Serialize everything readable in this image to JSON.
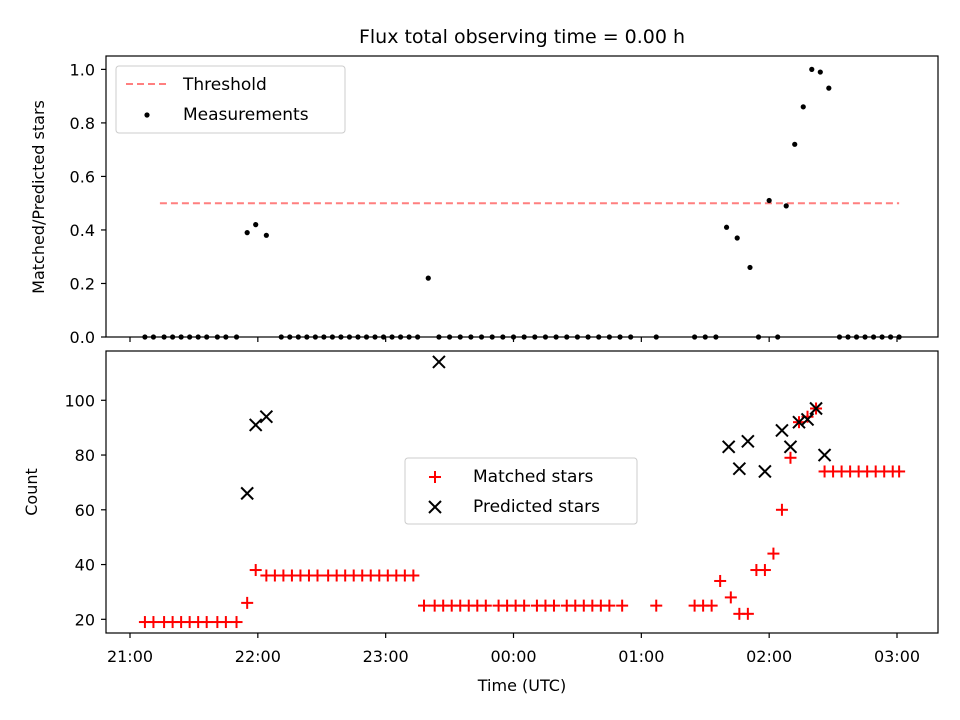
{
  "chart_data": [
    {
      "type": "scatter",
      "title": "Flux total observing time = 0.00 h",
      "ylabel": "Matched/Predicted stars",
      "xlabel": "",
      "ylim": [
        0,
        1.05
      ],
      "yticks": [
        "0.0",
        "0.2",
        "0.4",
        "0.6",
        "0.8",
        "1.0"
      ],
      "ytick_values": [
        0,
        0.2,
        0.4,
        0.6,
        0.8,
        1.0
      ],
      "grid": false,
      "legend_position": "upper-left",
      "threshold": {
        "name": "Threshold",
        "value": 0.5,
        "x_start": "21:07",
        "x_end": "03:01",
        "color": "#ff7f7f"
      },
      "series": [
        {
          "name": "Measurements",
          "color": "#000000",
          "x": [
            "21:07",
            "21:11",
            "21:16",
            "21:20",
            "21:24",
            "21:28",
            "21:32",
            "21:36",
            "21:41",
            "21:45",
            "21:50",
            "21:55",
            "21:59",
            "22:04",
            "22:11",
            "22:15",
            "22:19",
            "22:23",
            "22:27",
            "22:31",
            "22:35",
            "22:39",
            "22:43",
            "22:47",
            "22:51",
            "22:55",
            "22:59",
            "23:03",
            "23:07",
            "23:11",
            "23:15",
            "23:20",
            "23:25",
            "23:30",
            "23:35",
            "23:40",
            "23:45",
            "23:50",
            "23:55",
            "00:00",
            "00:05",
            "00:10",
            "00:15",
            "00:20",
            "00:25",
            "00:30",
            "00:35",
            "00:40",
            "00:45",
            "00:50",
            "00:55",
            "01:07",
            "01:25",
            "01:30",
            "01:35",
            "01:40",
            "01:45",
            "01:51",
            "01:55",
            "02:00",
            "02:04",
            "02:08",
            "02:12",
            "02:16",
            "02:20",
            "02:24",
            "02:28",
            "02:33",
            "02:37",
            "02:41",
            "02:45",
            "02:49",
            "02:53",
            "02:57",
            "03:01"
          ],
          "y": [
            0,
            0,
            0,
            0,
            0,
            0,
            0,
            0,
            0,
            0,
            0,
            0.39,
            0.42,
            0.38,
            0,
            0,
            0,
            0,
            0,
            0,
            0,
            0,
            0,
            0,
            0,
            0,
            0,
            0,
            0,
            0,
            0,
            0.22,
            0,
            0,
            0,
            0,
            0,
            0,
            0,
            0,
            0,
            0,
            0,
            0,
            0,
            0,
            0,
            0,
            0,
            0,
            0,
            0,
            0,
            0,
            0,
            0.41,
            0.37,
            0.26,
            0,
            0.51,
            0,
            0.49,
            0.72,
            0.86,
            1.0,
            0.99,
            0.93,
            0,
            0,
            0,
            0,
            0,
            0,
            0,
            0
          ]
        }
      ]
    },
    {
      "type": "scatter",
      "title": "",
      "ylabel": "Count",
      "xlabel": "Time (UTC)",
      "ylim": [
        15,
        118
      ],
      "yticks": [
        "20",
        "40",
        "60",
        "80",
        "100"
      ],
      "ytick_values": [
        20,
        40,
        60,
        80,
        100
      ],
      "xticks": [
        "21:00",
        "22:00",
        "23:00",
        "00:00",
        "01:00",
        "02:00",
        "03:00"
      ],
      "xtick_values": [
        "21:00",
        "22:00",
        "23:00",
        "00:00",
        "01:00",
        "02:00",
        "03:00"
      ],
      "grid": false,
      "legend_position": "center",
      "series": [
        {
          "name": "Matched stars",
          "color": "#ff0000",
          "marker": "plus",
          "x": [
            "21:07",
            "21:11",
            "21:16",
            "21:20",
            "21:24",
            "21:28",
            "21:32",
            "21:36",
            "21:41",
            "21:45",
            "21:50",
            "21:55",
            "21:59",
            "22:04",
            "22:08",
            "22:12",
            "22:16",
            "22:20",
            "22:24",
            "22:28",
            "22:33",
            "22:37",
            "22:41",
            "22:45",
            "22:49",
            "22:53",
            "22:57",
            "23:01",
            "23:05",
            "23:09",
            "23:13",
            "23:18",
            "23:23",
            "23:27",
            "23:31",
            "23:35",
            "23:39",
            "23:43",
            "23:47",
            "23:53",
            "23:57",
            "00:01",
            "00:05",
            "00:11",
            "00:15",
            "00:19",
            "00:25",
            "00:29",
            "00:33",
            "00:37",
            "00:41",
            "00:45",
            "00:51",
            "01:07",
            "01:25",
            "01:29",
            "01:33",
            "01:37",
            "01:42",
            "01:46",
            "01:50",
            "01:54",
            "01:58",
            "02:02",
            "02:06",
            "02:10",
            "02:14",
            "02:18",
            "02:22",
            "02:26",
            "02:30",
            "02:34",
            "02:38",
            "02:42",
            "02:46",
            "02:50",
            "02:54",
            "02:58",
            "03:01"
          ],
          "y": [
            19,
            19,
            19,
            19,
            19,
            19,
            19,
            19,
            19,
            19,
            19,
            26,
            38,
            36,
            36,
            36,
            36,
            36,
            36,
            36,
            36,
            36,
            36,
            36,
            36,
            36,
            36,
            36,
            36,
            36,
            36,
            25,
            25,
            25,
            25,
            25,
            25,
            25,
            25,
            25,
            25,
            25,
            25,
            25,
            25,
            25,
            25,
            25,
            25,
            25,
            25,
            25,
            25,
            25,
            25,
            25,
            25,
            34,
            28,
            22,
            22,
            38,
            38,
            44,
            60,
            79,
            92,
            94,
            97,
            74,
            74,
            74,
            74,
            74,
            74,
            74,
            74,
            74,
            74
          ]
        },
        {
          "name": "Predicted stars",
          "color": "#000000",
          "marker": "x",
          "x": [
            "21:55",
            "21:59",
            "22:04",
            "23:25",
            "01:41",
            "01:46",
            "01:50",
            "01:58",
            "02:06",
            "02:10",
            "02:14",
            "02:18",
            "02:22",
            "02:26"
          ],
          "y": [
            66,
            91,
            94,
            114,
            83,
            75,
            85,
            74,
            89,
            83,
            92,
            93,
            97,
            80
          ]
        }
      ]
    }
  ]
}
